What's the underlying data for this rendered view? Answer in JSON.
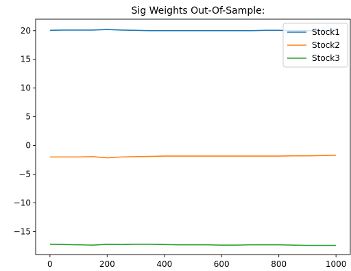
{
  "chart_data": {
    "type": "line",
    "title": "Sig Weights Out-Of-Sample:",
    "xlabel": "",
    "ylabel": "",
    "xlim": [
      -50,
      1050
    ],
    "ylim": [
      -19,
      22
    ],
    "xticks": [
      0,
      200,
      400,
      600,
      800,
      1000
    ],
    "xtick_labels": [
      "0",
      "200",
      "400",
      "600",
      "800",
      "1000"
    ],
    "yticks": [
      -15,
      -10,
      -5,
      0,
      5,
      10,
      15,
      20
    ],
    "ytick_labels": [
      "−15",
      "−10",
      "−5",
      "0",
      "5",
      "10",
      "15",
      "20"
    ],
    "grid": false,
    "legend_position": "top-right",
    "series": [
      {
        "name": "Stock1",
        "color": "#1f77b4",
        "x": [
          0,
          50,
          100,
          150,
          200,
          250,
          300,
          350,
          400,
          450,
          500,
          550,
          600,
          650,
          700,
          750,
          800,
          850,
          900,
          950,
          1000
        ],
        "y": [
          20.05,
          20.1,
          20.1,
          20.1,
          20.2,
          20.1,
          20.05,
          20.0,
          20.0,
          20.0,
          20.0,
          20.0,
          20.0,
          20.0,
          20.0,
          20.05,
          20.05,
          20.0,
          20.0,
          20.0,
          20.0
        ]
      },
      {
        "name": "Stock2",
        "color": "#ff7f0e",
        "x": [
          0,
          50,
          100,
          150,
          200,
          250,
          300,
          350,
          400,
          450,
          500,
          550,
          600,
          650,
          700,
          750,
          800,
          850,
          900,
          950,
          1000
        ],
        "y": [
          -2.0,
          -2.0,
          -2.0,
          -1.95,
          -2.15,
          -2.0,
          -1.95,
          -1.9,
          -1.85,
          -1.85,
          -1.85,
          -1.85,
          -1.85,
          -1.85,
          -1.85,
          -1.85,
          -1.85,
          -1.8,
          -1.8,
          -1.75,
          -1.7
        ]
      },
      {
        "name": "Stock3",
        "color": "#2ca02c",
        "x": [
          0,
          50,
          100,
          150,
          200,
          250,
          300,
          350,
          400,
          450,
          500,
          550,
          600,
          650,
          700,
          750,
          800,
          850,
          900,
          950,
          1000
        ],
        "y": [
          -17.2,
          -17.25,
          -17.3,
          -17.35,
          -17.2,
          -17.25,
          -17.2,
          -17.2,
          -17.25,
          -17.3,
          -17.3,
          -17.3,
          -17.35,
          -17.35,
          -17.3,
          -17.3,
          -17.3,
          -17.35,
          -17.4,
          -17.4,
          -17.4
        ]
      }
    ]
  }
}
